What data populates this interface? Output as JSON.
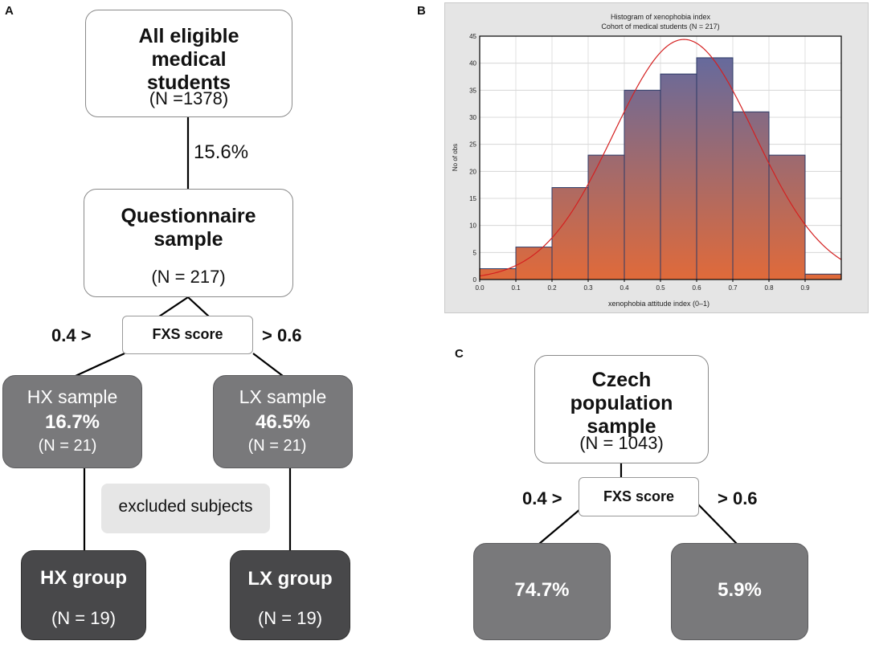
{
  "panels": {
    "a": "A",
    "b": "B",
    "c": "C"
  },
  "flow_a": {
    "eligible": {
      "title": "All eligible medical students",
      "n": "(N =1378)"
    },
    "rate": "15.6%",
    "questionnaire": {
      "title": "Questionnaire sample",
      "n": "(N = 217)"
    },
    "fxs": {
      "label": "FXS score",
      "left_cond": "0.4 >",
      "right_cond": "> 0.6"
    },
    "hx_sample": {
      "title": "HX sample",
      "pct": "16.7%",
      "n": "(N = 21)"
    },
    "lx_sample": {
      "title": "LX sample",
      "pct": "46.5%",
      "n": "(N = 21)"
    },
    "excluded": "excluded subjects",
    "hx_group": {
      "title": "HX group",
      "n": "(N = 19)"
    },
    "lx_group": {
      "title": "LX group",
      "n": "(N = 19)"
    }
  },
  "flow_c": {
    "population": {
      "title": "Czech population sample",
      "n": "(N = 1043)"
    },
    "fxs": {
      "label": "FXS score",
      "left_cond": "0.4 >",
      "right_cond": "> 0.6"
    },
    "left_pct": "74.7%",
    "right_pct": "5.9%"
  },
  "colors": {
    "bar_top": "#5a6aa6",
    "bar_bottom": "#e06a3a",
    "curve": "#d42020"
  },
  "chart_data": {
    "type": "bar",
    "title": "Histogram of xenophobia index",
    "subtitle": "Cohort of medical students (N = 217)",
    "xlabel": "xenophobia attitude index (0–1)",
    "ylabel": "No of obs",
    "xlim": [
      0,
      1.0
    ],
    "ylim": [
      0,
      45
    ],
    "x_ticks": [
      "0.0",
      "0.1",
      "0.2",
      "0.3",
      "0.4",
      "0.5",
      "0.6",
      "0.7",
      "0.8",
      "0.9"
    ],
    "y_ticks": [
      "0",
      "5",
      "10",
      "15",
      "20",
      "25",
      "30",
      "35",
      "40",
      "45"
    ],
    "bins": [
      {
        "start": 0.0,
        "end": 0.1,
        "value": 2
      },
      {
        "start": 0.1,
        "end": 0.2,
        "value": 6
      },
      {
        "start": 0.2,
        "end": 0.3,
        "value": 17
      },
      {
        "start": 0.3,
        "end": 0.4,
        "value": 23
      },
      {
        "start": 0.4,
        "end": 0.5,
        "value": 35
      },
      {
        "start": 0.5,
        "end": 0.6,
        "value": 38
      },
      {
        "start": 0.6,
        "end": 0.7,
        "value": 41
      },
      {
        "start": 0.7,
        "end": 0.8,
        "value": 31
      },
      {
        "start": 0.8,
        "end": 0.9,
        "value": 23
      },
      {
        "start": 0.9,
        "end": 1.0,
        "value": 1
      }
    ],
    "normal_fit": {
      "mean": 0.565,
      "sd": 0.195,
      "n": 217,
      "bin_width": 0.1
    }
  }
}
